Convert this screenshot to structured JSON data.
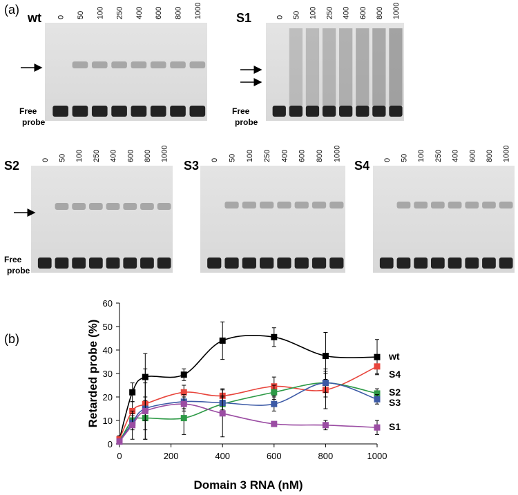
{
  "panel_a": {
    "label": "(a)",
    "gels": [
      {
        "name": "wt",
        "color": "#000000",
        "lanes": [
          "0",
          "50",
          "100",
          "250",
          "400",
          "600",
          "800",
          "1000"
        ],
        "free_probe": "Free\nprobe"
      },
      {
        "name": "S1",
        "color": "#9b4da3",
        "lanes": [
          "0",
          "50",
          "100",
          "250",
          "400",
          "600",
          "800",
          "1000"
        ],
        "free_probe": "Free\nprobe"
      },
      {
        "name": "S2",
        "color": "#2e9a47",
        "lanes": [
          "0",
          "50",
          "100",
          "250",
          "400",
          "600",
          "800",
          "1000"
        ],
        "free_probe": "Free\nprobe"
      },
      {
        "name": "S3",
        "color": "#3c5aa6",
        "lanes": [
          "0",
          "50",
          "100",
          "250",
          "400",
          "600",
          "800",
          "1000"
        ]
      },
      {
        "name": "S4",
        "color": "#e8453c",
        "lanes": [
          "0",
          "50",
          "100",
          "250",
          "400",
          "600",
          "800",
          "1000"
        ]
      }
    ]
  },
  "panel_b": {
    "label": "(b)"
  },
  "chart_data": {
    "type": "line",
    "x_label": "Domain 3 RNA (nM)",
    "y_label": "Retarded probe (%)",
    "x": [
      0,
      50,
      100,
      250,
      400,
      600,
      800,
      1000
    ],
    "xlim": [
      0,
      1000
    ],
    "xticks": [
      0,
      200,
      400,
      600,
      800,
      1000
    ],
    "ylim": [
      0,
      60
    ],
    "yticks": [
      0,
      10,
      20,
      30,
      40,
      50,
      60
    ],
    "series": [
      {
        "name": "wt",
        "color": "#000000",
        "values": [
          2,
          22,
          28.5,
          29.5,
          44,
          45.5,
          37.5,
          37
        ],
        "errors": [
          1.5,
          4,
          10,
          2.5,
          8,
          4,
          10,
          7.5
        ]
      },
      {
        "name": "S4",
        "color": "#e8453c",
        "values": [
          2,
          14,
          17,
          22,
          20.5,
          24.5,
          23,
          33
        ],
        "errors": [
          1,
          4,
          15,
          3,
          3,
          4,
          8,
          3
        ]
      },
      {
        "name": "S2",
        "color": "#2e9a47",
        "values": [
          1,
          10,
          11,
          11,
          17,
          22,
          26,
          21.5
        ],
        "errors": [
          1,
          3,
          5,
          7,
          3,
          3,
          6,
          2
        ]
      },
      {
        "name": "S3",
        "color": "#3c5aa6",
        "values": [
          1,
          9,
          15,
          18,
          17.5,
          17,
          26,
          19
        ],
        "errors": [
          1,
          3,
          5,
          3,
          3,
          3,
          4,
          2
        ]
      },
      {
        "name": "S1",
        "color": "#9b4da3",
        "values": [
          1,
          8,
          14,
          17,
          13,
          8.5,
          8,
          7
        ],
        "errors": [
          1,
          6,
          12,
          3,
          10,
          1,
          2,
          3
        ]
      }
    ]
  }
}
